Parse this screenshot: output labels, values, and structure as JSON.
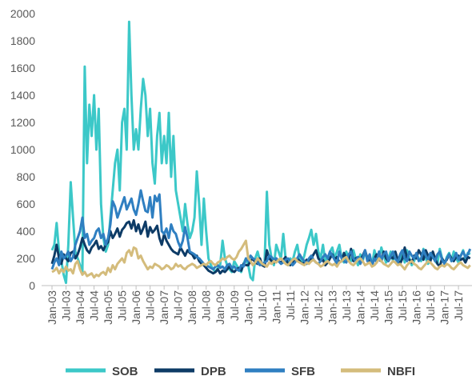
{
  "chart_data": {
    "type": "line",
    "categories": [
      "Jan-03",
      null,
      null,
      null,
      null,
      null,
      "Jul-03",
      null,
      null,
      null,
      null,
      null,
      "Jan-04",
      null,
      null,
      null,
      null,
      null,
      "Jul-04",
      null,
      null,
      null,
      null,
      null,
      "Jan-05",
      null,
      null,
      null,
      null,
      null,
      "Jul-05",
      null,
      null,
      null,
      null,
      null,
      "Jan-06",
      null,
      null,
      null,
      null,
      null,
      "Jul-06",
      null,
      null,
      null,
      null,
      null,
      "Jan-07",
      null,
      null,
      null,
      null,
      null,
      "Jul-07",
      null,
      null,
      null,
      null,
      null,
      "Jan-08",
      null,
      null,
      null,
      null,
      null,
      "Jul-08",
      null,
      null,
      null,
      null,
      null,
      "Jan-09",
      null,
      null,
      null,
      null,
      null,
      "Jul-09",
      null,
      null,
      null,
      null,
      null,
      "Jan-10",
      null,
      null,
      null,
      null,
      null,
      "Jul-10",
      null,
      null,
      null,
      null,
      null,
      "Jan-11",
      null,
      null,
      null,
      null,
      null,
      "Jul-11",
      null,
      null,
      null,
      null,
      null,
      "Jan-12",
      null,
      null,
      null,
      null,
      null,
      "Jul-12",
      null,
      null,
      null,
      null,
      null,
      "Jan-13",
      null,
      null,
      null,
      null,
      null,
      "Jul-13",
      null,
      null,
      null,
      null,
      null,
      "Jan-14",
      null,
      null,
      null,
      null,
      null,
      "Jul-14",
      null,
      null,
      null,
      null,
      null,
      "Jan-15",
      null,
      null,
      null,
      null,
      null,
      "Jul-15",
      null,
      null,
      null,
      null,
      null,
      "Jan-16",
      null,
      null,
      null,
      null,
      null,
      "Jul-16",
      null,
      null,
      null,
      null,
      null,
      "Jan-17",
      null,
      null,
      null,
      null,
      null,
      "Jul-17",
      null,
      null,
      null,
      null,
      null
    ],
    "ylim": [
      0,
      2000
    ],
    "yticks": [
      0,
      200,
      400,
      600,
      800,
      1000,
      1200,
      1400,
      1600,
      1800,
      2000
    ],
    "grid": false,
    "series": [
      {
        "name": "SOB",
        "color": "#3cc8c8",
        "values": [
          260,
          300,
          460,
          250,
          180,
          80,
          20,
          300,
          760,
          500,
          250,
          200,
          150,
          100,
          1610,
          900,
          1330,
          1100,
          1400,
          1000,
          1300,
          600,
          350,
          250,
          300,
          500,
          700,
          900,
          1000,
          700,
          1200,
          1300,
          1000,
          1940,
          1400,
          1000,
          1150,
          1000,
          1300,
          1520,
          1400,
          1100,
          1300,
          900,
          750,
          1100,
          1270,
          900,
          1100,
          900,
          1270,
          800,
          1100,
          700,
          600,
          500,
          400,
          600,
          450,
          350,
          400,
          500,
          840,
          600,
          300,
          640,
          400,
          200,
          150,
          120,
          100,
          130,
          150,
          330,
          200,
          150,
          120,
          100,
          180,
          150,
          120,
          100,
          160,
          200,
          150,
          60,
          40,
          200,
          250,
          180,
          150,
          160,
          690,
          300,
          200,
          150,
          300,
          250,
          200,
          380,
          200,
          150,
          200,
          180,
          250,
          300,
          200,
          170,
          220,
          300,
          350,
          410,
          300,
          380,
          250,
          200,
          300,
          180,
          200,
          250,
          280,
          200,
          250,
          300,
          200,
          170,
          250,
          200,
          180,
          260,
          200,
          150,
          230,
          180,
          250,
          200,
          170,
          150,
          260,
          200,
          190,
          280,
          220,
          170,
          200,
          250,
          180,
          230,
          160,
          200,
          250,
          170,
          260,
          200,
          150,
          180,
          230,
          200,
          180,
          270,
          200,
          160,
          190,
          220,
          180,
          160,
          270,
          200,
          160,
          210,
          240,
          180,
          250,
          200,
          170,
          220,
          260,
          200,
          240,
          230
        ]
      },
      {
        "name": "DPB",
        "color": "#0d3b66",
        "values": [
          160,
          220,
          300,
          200,
          160,
          230,
          200,
          180,
          240,
          250,
          200,
          230,
          280,
          350,
          300,
          260,
          240,
          280,
          300,
          330,
          270,
          290,
          260,
          300,
          320,
          400,
          350,
          380,
          420,
          360,
          410,
          430,
          460,
          470,
          420,
          480,
          400,
          450,
          380,
          420,
          470,
          360,
          430,
          390,
          410,
          440,
          350,
          300,
          380,
          330,
          300,
          270,
          250,
          240,
          230,
          280,
          250,
          220,
          260,
          240,
          230,
          200,
          220,
          180,
          160,
          150,
          130,
          110,
          100,
          90,
          100,
          120,
          90,
          110,
          100,
          120,
          140,
          110,
          100,
          120,
          130,
          110,
          160,
          150,
          150,
          180,
          200,
          170,
          160,
          200,
          150,
          140,
          260,
          200,
          180,
          170,
          200,
          180,
          170,
          190,
          210,
          160,
          150,
          170,
          190,
          200,
          180,
          160,
          170,
          190,
          180,
          200,
          230,
          260,
          200,
          180,
          190,
          150,
          170,
          200,
          230,
          190,
          210,
          170,
          180,
          240,
          200,
          190,
          270,
          180,
          200,
          210,
          190,
          220,
          260,
          200,
          180,
          150,
          200,
          230,
          190,
          180,
          250,
          200,
          180,
          210,
          200,
          250,
          190,
          160,
          200,
          280,
          200,
          190,
          170,
          220,
          200,
          260,
          230,
          190,
          260,
          220,
          180,
          250,
          200,
          160,
          140,
          200,
          170,
          190,
          230,
          200,
          180,
          210,
          220,
          190,
          200,
          170,
          210,
          200
        ]
      },
      {
        "name": "SFB",
        "color": "#2f7fc1",
        "values": [
          120,
          170,
          200,
          150,
          250,
          200,
          220,
          250,
          180,
          210,
          300,
          350,
          400,
          500,
          350,
          380,
          300,
          330,
          350,
          400,
          420,
          350,
          380,
          300,
          350,
          450,
          620,
          580,
          500,
          550,
          600,
          650,
          560,
          600,
          640,
          560,
          520,
          600,
          700,
          620,
          550,
          540,
          650,
          500,
          660,
          620,
          670,
          400,
          380,
          420,
          350,
          450,
          400,
          380,
          320,
          280,
          330,
          430,
          350,
          250,
          240,
          230,
          210,
          200,
          180,
          160,
          150,
          140,
          130,
          120,
          140,
          150,
          130,
          140,
          120,
          150,
          160,
          130,
          140,
          120,
          110,
          150,
          140,
          200,
          180,
          220,
          200,
          190,
          170,
          150,
          160,
          170,
          180,
          220,
          210,
          190,
          200,
          180,
          160,
          170,
          190,
          200,
          180,
          150,
          170,
          200,
          230,
          200,
          180,
          160,
          200,
          220,
          190,
          170,
          160,
          180,
          210,
          230,
          200,
          250,
          220,
          190,
          160,
          250,
          200,
          180,
          170,
          230,
          250,
          200,
          180,
          210,
          160,
          200,
          260,
          180,
          230,
          150,
          200,
          170,
          250,
          190,
          230,
          250,
          180,
          220,
          250,
          200,
          170,
          230,
          260,
          200,
          180,
          250,
          220,
          200,
          240,
          180,
          200,
          260,
          220,
          190,
          240,
          210,
          180,
          230,
          250,
          190,
          160,
          200,
          230,
          180,
          200,
          240,
          190,
          220,
          250,
          210,
          230,
          270
        ]
      },
      {
        "name": "NBFI",
        "color": "#d4bc7c",
        "values": [
          100,
          110,
          130,
          90,
          120,
          100,
          140,
          110,
          120,
          90,
          160,
          180,
          120,
          80,
          100,
          70,
          80,
          90,
          60,
          80,
          70,
          90,
          100,
          80,
          130,
          100,
          150,
          120,
          160,
          180,
          200,
          170,
          240,
          260,
          220,
          280,
          270,
          200,
          220,
          180,
          150,
          120,
          140,
          130,
          160,
          150,
          140,
          120,
          130,
          150,
          140,
          120,
          130,
          160,
          140,
          150,
          130,
          120,
          140,
          150,
          160,
          150,
          130,
          140,
          150,
          160,
          150,
          170,
          180,
          160,
          150,
          170,
          180,
          200,
          190,
          210,
          220,
          200,
          190,
          210,
          250,
          270,
          300,
          330,
          200,
          180,
          150,
          170,
          200,
          180,
          160,
          150,
          140,
          170,
          160,
          180,
          170,
          190,
          200,
          180,
          160,
          150,
          170,
          190,
          200,
          180,
          170,
          160,
          150,
          170,
          160,
          180,
          190,
          170,
          160,
          140,
          150,
          170,
          180,
          160,
          150,
          160,
          140,
          170,
          180,
          200,
          210,
          180,
          160,
          150,
          170,
          190,
          200,
          180,
          150,
          160,
          170,
          140,
          150,
          170,
          200,
          180,
          160,
          150,
          140,
          160,
          180,
          170,
          150,
          160,
          140,
          120,
          150,
          170,
          180,
          160,
          150,
          130,
          120,
          140,
          160,
          180,
          170,
          150,
          130,
          120,
          140,
          150,
          140,
          160,
          150,
          130,
          120,
          140,
          160,
          170,
          150,
          140,
          130,
          150
        ]
      }
    ]
  }
}
